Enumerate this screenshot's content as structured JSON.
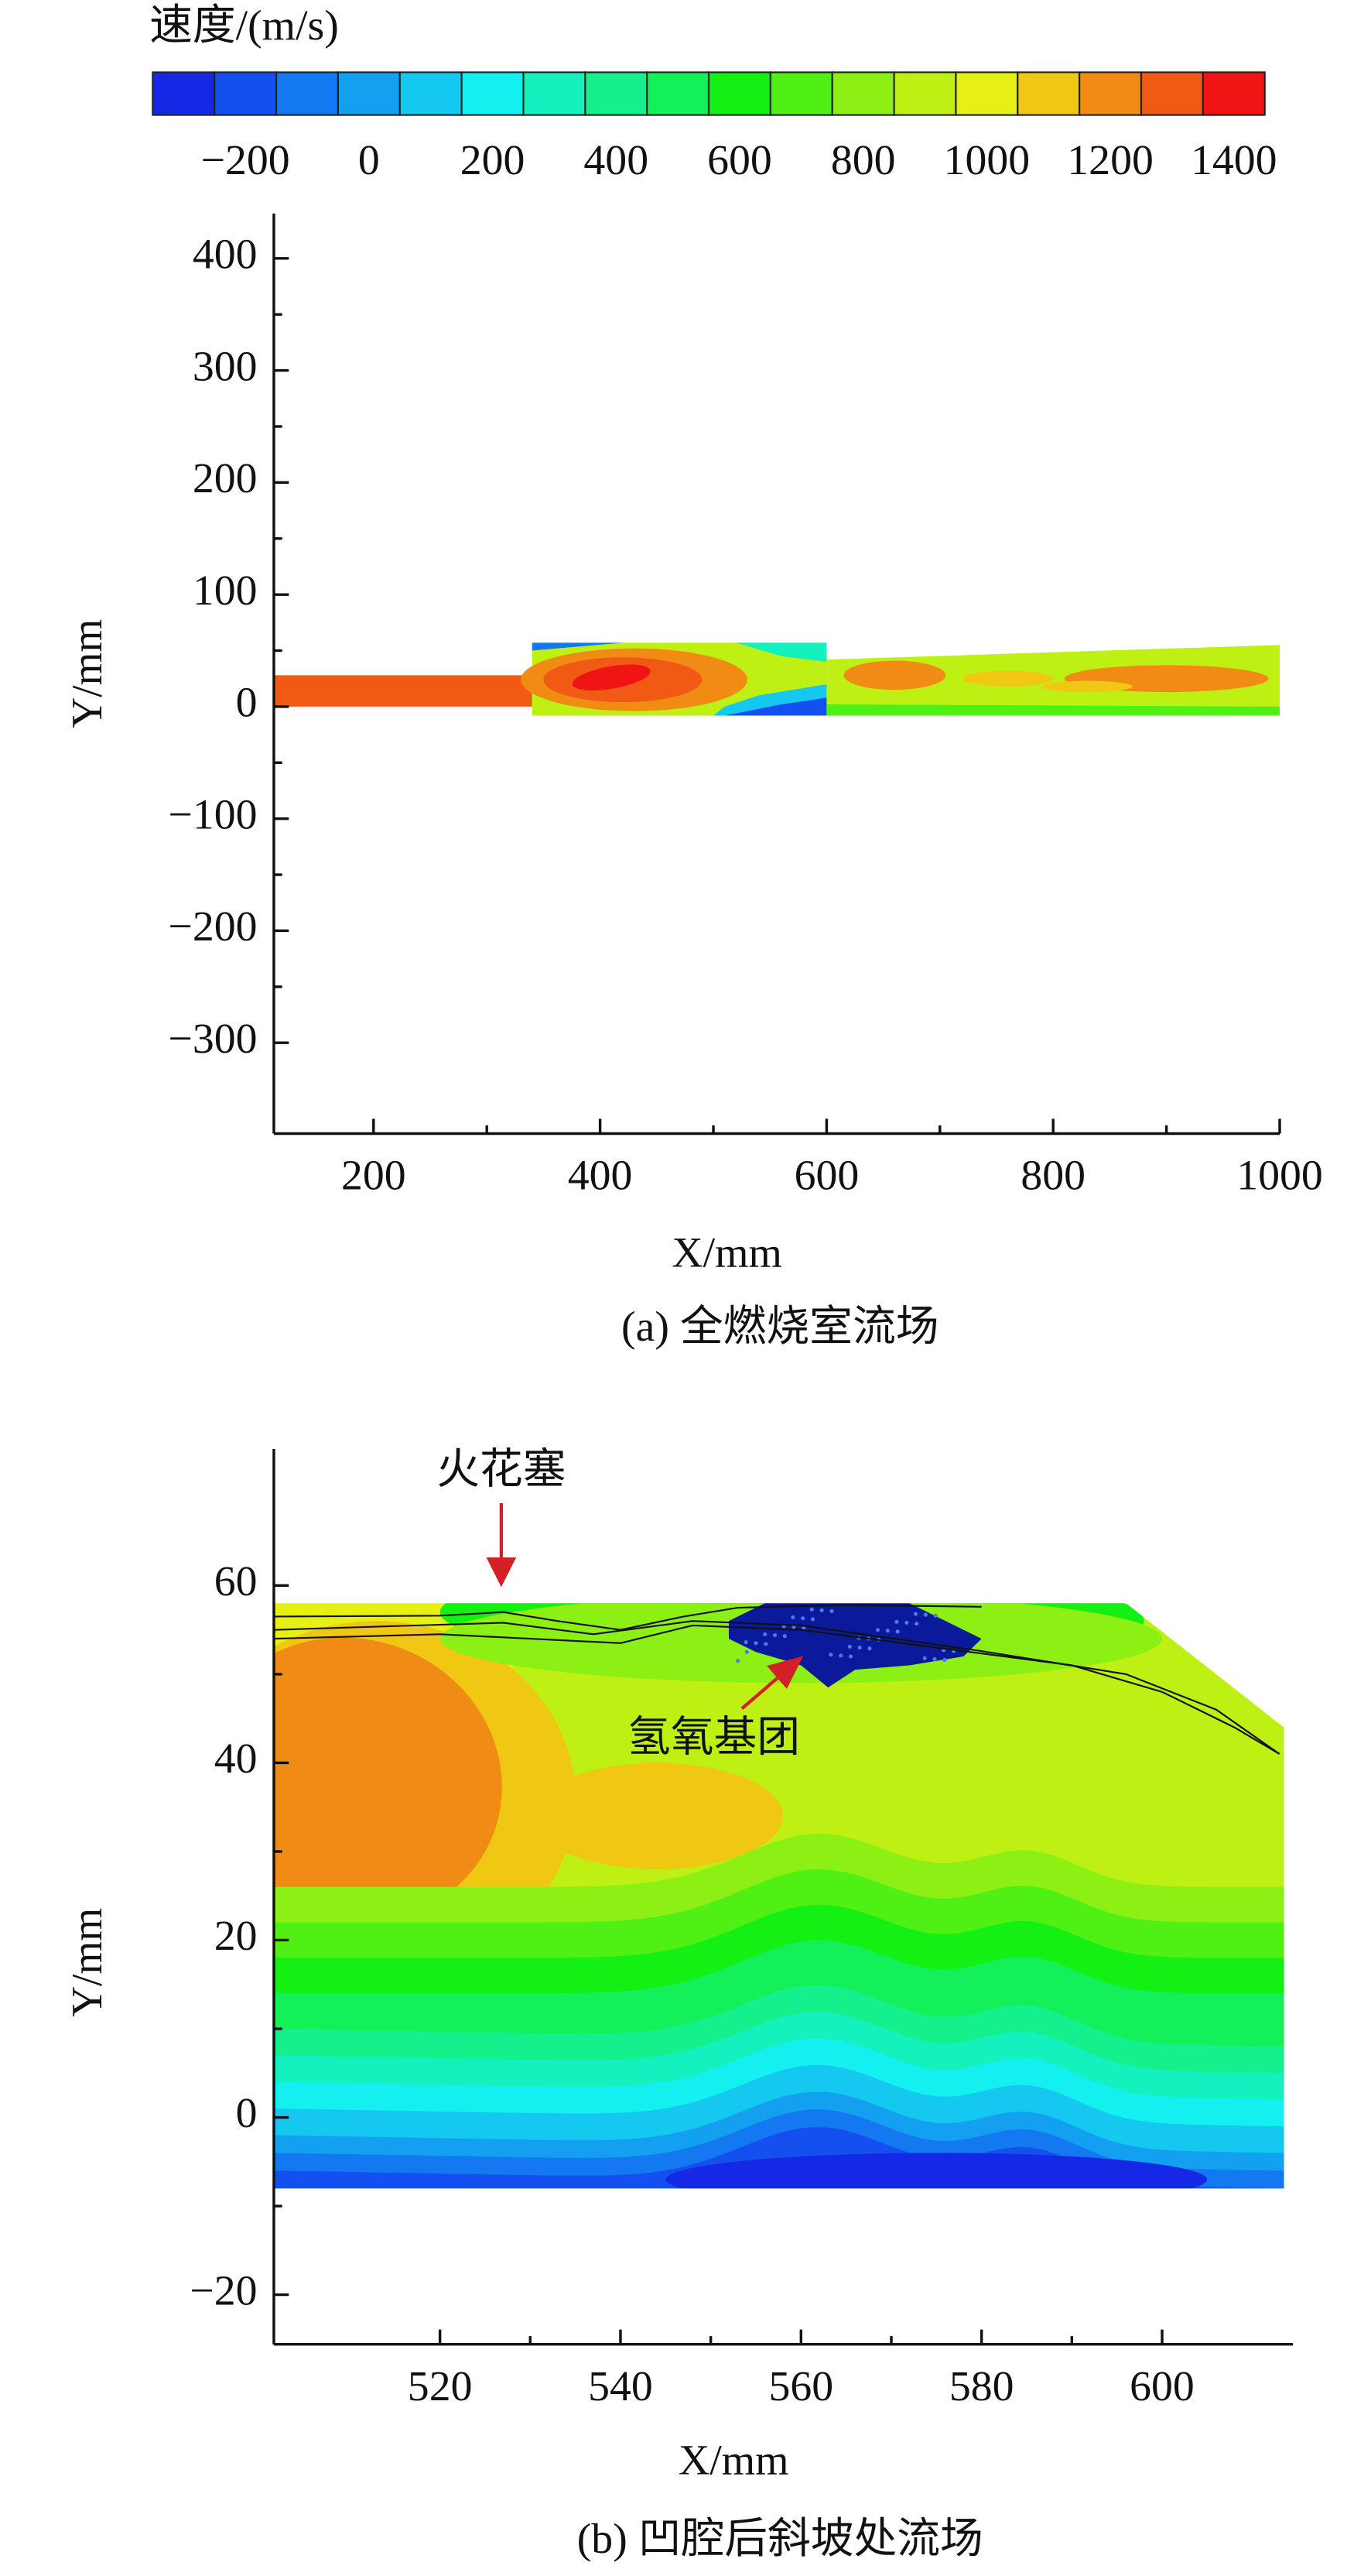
{
  "chart_data": [
    {
      "type": "contour",
      "colorbar": {
        "title": "速度/(m/s)",
        "lim": [
          -350,
          1450
        ],
        "ticks": [
          {
            "value": -200,
            "label": "−200"
          },
          0,
          200,
          400,
          600,
          800,
          1000,
          1200,
          1400
        ],
        "colors": [
          "#1428e6",
          "#1450f0",
          "#1478f0",
          "#14a0f0",
          "#14c8f0",
          "#14f0f0",
          "#14f0be",
          "#14f08c",
          "#14f05a",
          "#14f014",
          "#50f014",
          "#8cf014",
          "#bef014",
          "#e6f014",
          "#f0c814",
          "#f08c14",
          "#f05a14",
          "#f01414"
        ]
      },
      "xlabel": "X/mm",
      "ylabel": "Y/mm",
      "caption": "(a) 全燃烧室流场",
      "xlim": [
        112,
        1000
      ],
      "xticks": [
        200,
        400,
        600,
        800,
        1000
      ],
      "ylim": [
        -381,
        440
      ],
      "yticks": [
        {
          "value": -300,
          "label": "−300"
        },
        {
          "value": -200,
          "label": "−200"
        },
        {
          "value": -100,
          "label": "−100"
        },
        0,
        100,
        200,
        300,
        400
      ]
    },
    {
      "type": "contour",
      "xlabel": "X/mm",
      "ylabel": "Y/mm",
      "caption": "(b) 凹腔后斜坡处流场",
      "xlim": [
        501.6,
        614.5
      ],
      "xticks": [
        520,
        540,
        560,
        580,
        600
      ],
      "ylim": [
        -25.6,
        75.4
      ],
      "yticks": [
        {
          "value": -20,
          "label": "−20"
        },
        0,
        20,
        40,
        60
      ],
      "annotations": [
        {
          "text": "火花塞"
        },
        {
          "text": "氢氧基团"
        }
      ]
    }
  ]
}
